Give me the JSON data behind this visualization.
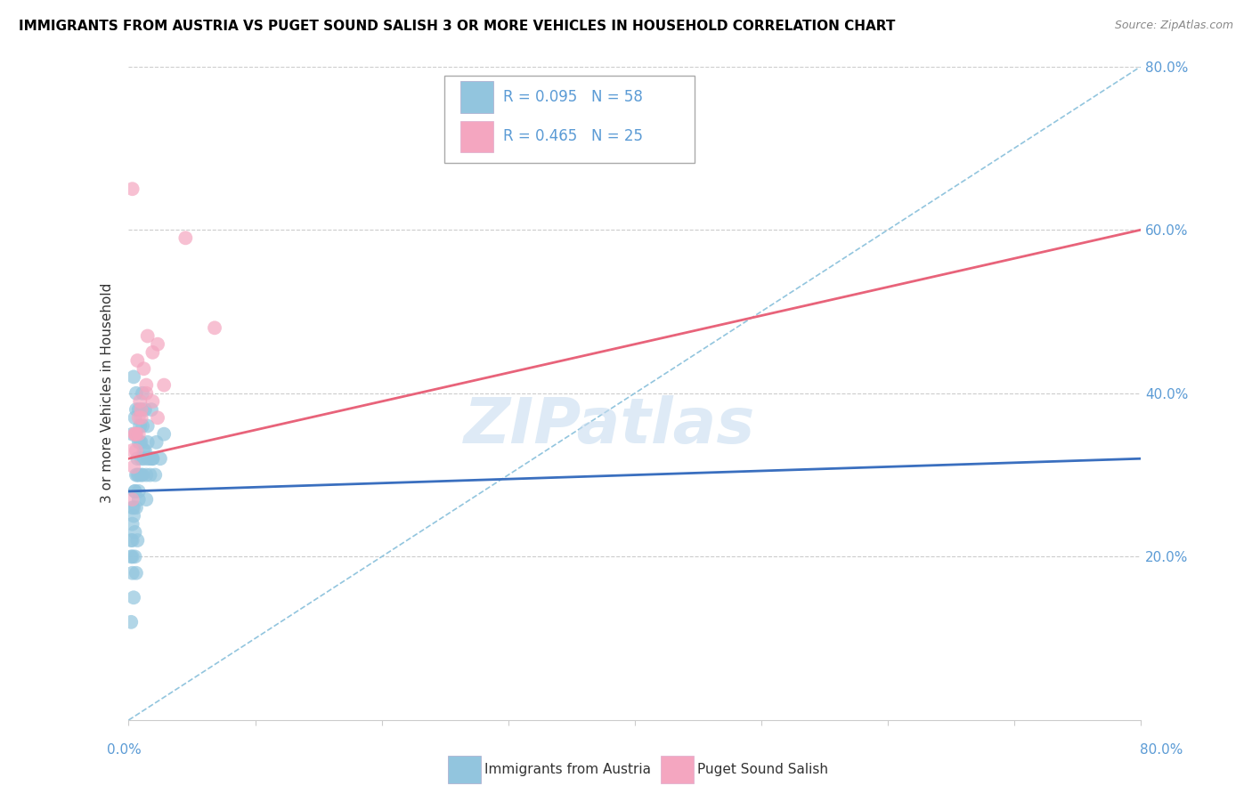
{
  "title": "IMMIGRANTS FROM AUSTRIA VS PUGET SOUND SALISH 3 OR MORE VEHICLES IN HOUSEHOLD CORRELATION CHART",
  "source": "Source: ZipAtlas.com",
  "ylabel": "3 or more Vehicles in Household",
  "legend_blue_r": "0.095",
  "legend_blue_n": "58",
  "legend_pink_r": "0.465",
  "legend_pink_n": "25",
  "blue_color": "#92c5de",
  "pink_color": "#f4a6c0",
  "blue_line_color": "#3a6fbf",
  "pink_line_color": "#e8637a",
  "dash_color": "#92c5de",
  "watermark_color": "#c8ddf0",
  "watermark": "ZIPatlas",
  "xmin": 0,
  "xmax": 80,
  "ymin": 0,
  "ymax": 80,
  "blue_scatter_x": [
    0.3,
    0.5,
    0.6,
    0.8,
    1.0,
    1.2,
    1.5,
    1.8,
    0.3,
    0.5,
    0.7,
    0.8,
    1.1,
    1.3,
    1.5,
    0.2,
    0.3,
    0.4,
    0.5,
    0.6,
    0.8,
    1.0,
    1.2,
    1.4,
    1.7,
    1.9,
    2.2,
    2.8,
    0.2,
    0.3,
    0.4,
    0.5,
    0.6,
    0.7,
    0.8,
    0.9,
    1.0,
    1.1,
    1.4,
    1.9,
    0.4,
    0.6,
    0.8,
    0.9,
    1.0,
    0.3,
    0.5,
    0.7,
    1.1,
    1.5,
    2.5,
    2.1,
    0.4,
    0.6,
    0.2,
    0.3,
    1.7,
    1.3
  ],
  "blue_scatter_y": [
    35,
    37,
    38,
    30,
    34,
    32,
    36,
    38,
    26,
    28,
    30,
    27,
    30,
    33,
    32,
    20,
    22,
    25,
    23,
    26,
    28,
    30,
    33,
    27,
    30,
    32,
    34,
    35,
    22,
    24,
    26,
    28,
    30,
    32,
    34,
    36,
    38,
    40,
    30,
    32,
    42,
    40,
    38,
    34,
    32,
    18,
    20,
    22,
    36,
    34,
    32,
    30,
    15,
    18,
    12,
    20,
    32,
    38
  ],
  "pink_scatter_x": [
    0.3,
    0.5,
    0.8,
    1.0,
    1.4,
    1.9,
    2.3,
    2.8,
    0.3,
    0.6,
    0.8,
    1.0,
    1.2,
    1.5,
    1.9,
    0.4,
    0.6,
    0.9,
    1.4,
    4.5,
    0.3,
    0.5,
    0.7,
    6.8,
    2.3
  ],
  "pink_scatter_y": [
    33,
    35,
    37,
    38,
    40,
    39,
    37,
    41,
    65,
    33,
    35,
    37,
    43,
    47,
    45,
    31,
    35,
    39,
    41,
    59,
    27,
    35,
    44,
    48,
    46
  ],
  "blue_trend_x": [
    0,
    80
  ],
  "blue_trend_y": [
    28,
    32
  ],
  "pink_trend_x": [
    0,
    80
  ],
  "pink_trend_y": [
    32,
    60
  ],
  "dash_trend_x": [
    0,
    80
  ],
  "dash_trend_y": [
    0,
    80
  ],
  "grid_color": "#e0e0e0",
  "grid_linestyle": "--"
}
